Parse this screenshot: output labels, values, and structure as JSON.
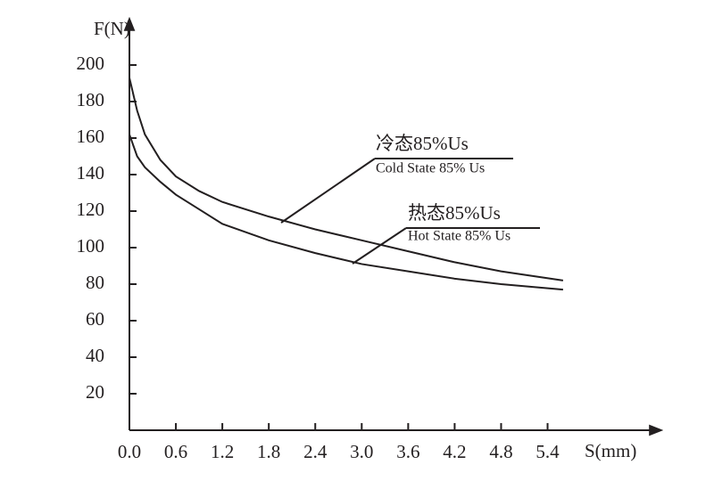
{
  "chart_data": {
    "type": "line",
    "x_label": "S(mm)",
    "y_label": "F(N)",
    "x": [
      0,
      0.1,
      0.2,
      0.4,
      0.6,
      0.9,
      1.2,
      1.8,
      2.4,
      3.0,
      3.6,
      4.2,
      4.8,
      5.6
    ],
    "series": [
      {
        "name": "冷态85%Us",
        "subtitle": "Cold State 85% Us",
        "color": "#231f20",
        "values": [
          193,
          175,
          162,
          148,
          139,
          131,
          125,
          117,
          110,
          104,
          98,
          92,
          87,
          82
        ]
      },
      {
        "name": "热态85%Us",
        "subtitle": "Hot State 85% Us",
        "color": "#231f20",
        "values": [
          162,
          150,
          144,
          136,
          129,
          121,
          113,
          104,
          97,
          91,
          87,
          83,
          80,
          77
        ]
      }
    ],
    "xlim": [
      0,
      6.8
    ],
    "ylim": [
      0,
      220
    ],
    "xticks": [
      {
        "value": 0,
        "label": "0.0"
      },
      0.6,
      1.2,
      1.8,
      2.4,
      {
        "value": 3,
        "label": "3.0"
      },
      3.6,
      4.2,
      4.8,
      5.4
    ],
    "yticks": [
      20,
      40,
      60,
      80,
      100,
      120,
      140,
      160,
      180,
      200
    ],
    "grid": false
  }
}
